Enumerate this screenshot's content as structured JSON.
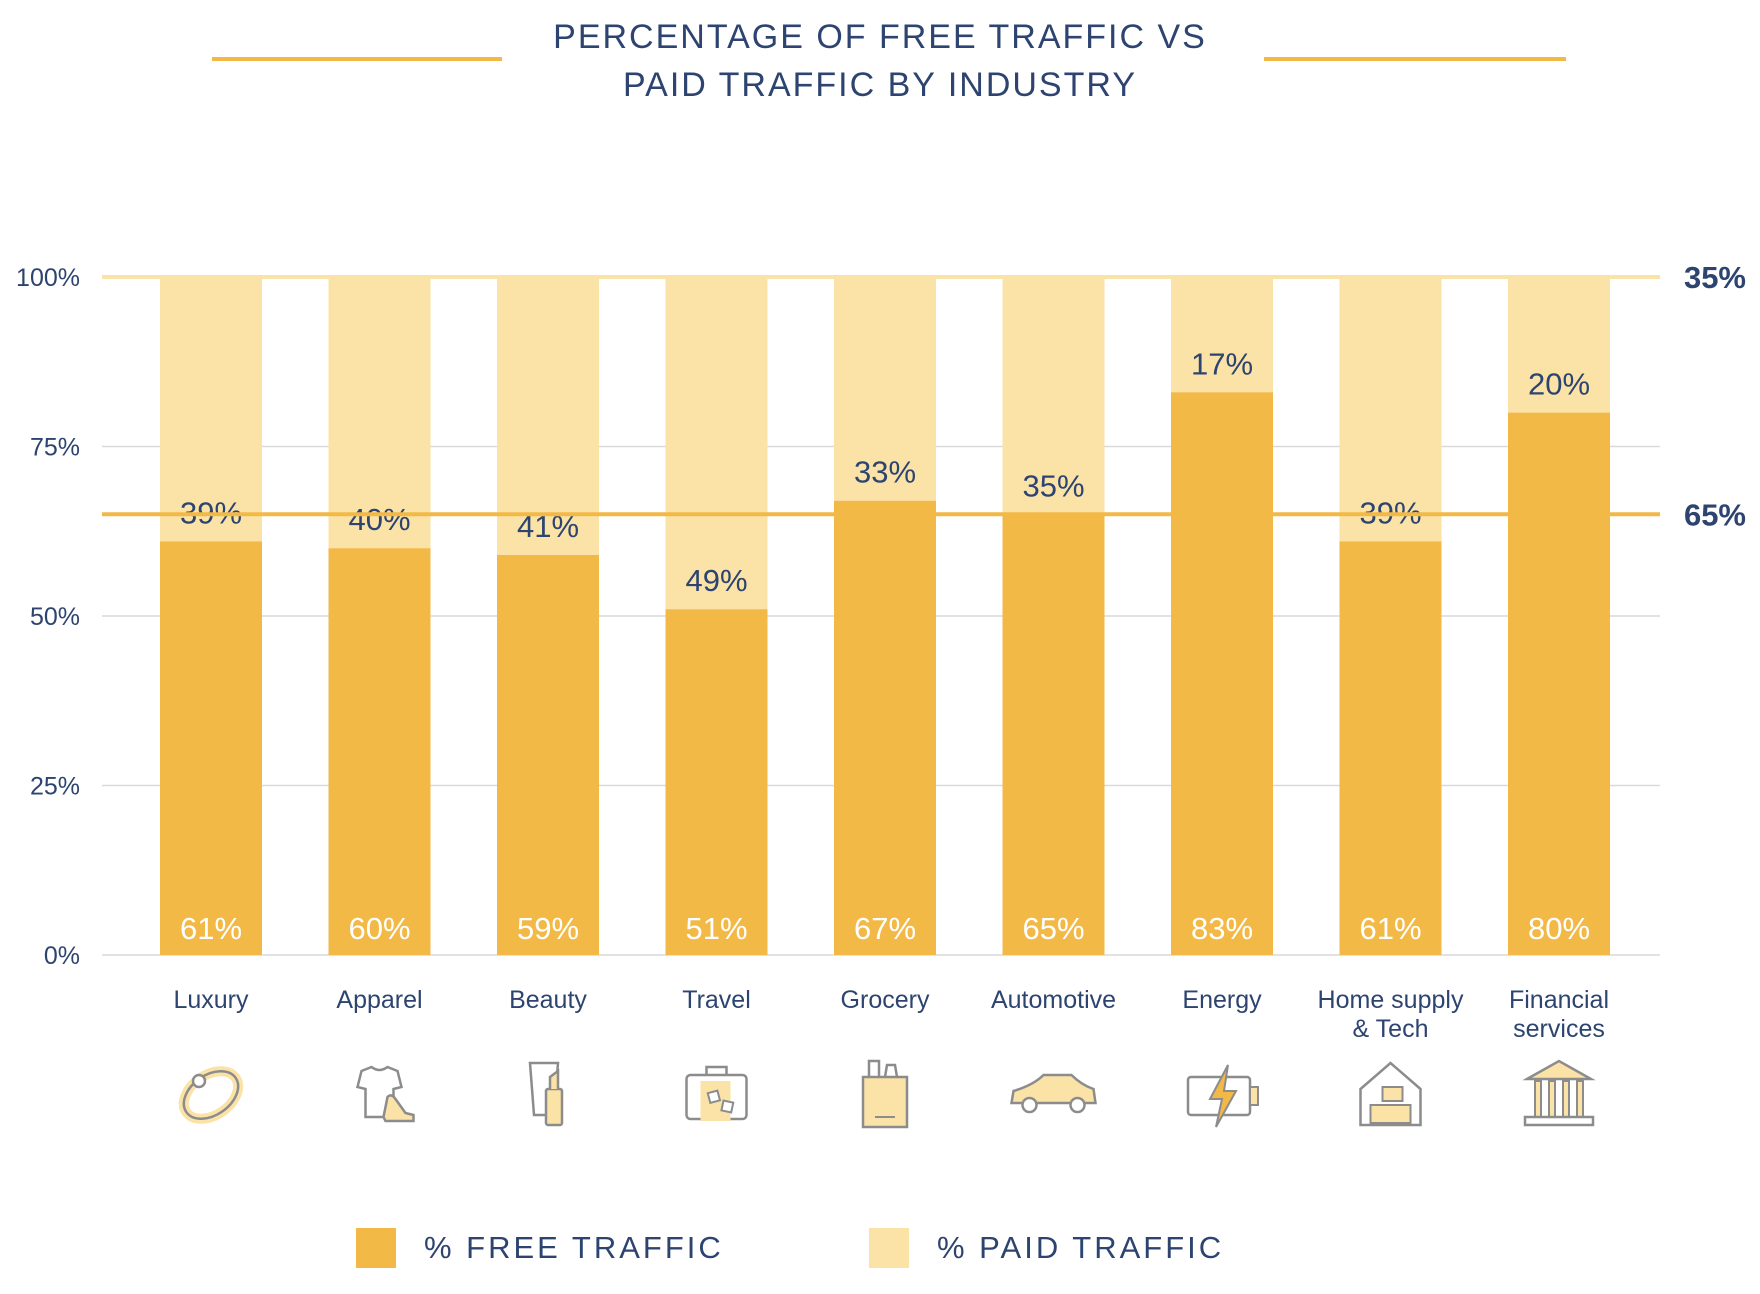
{
  "chart_data": {
    "type": "bar",
    "stacked": true,
    "title_lines": [
      "PERCENTAGE OF FREE TRAFFIC VS",
      "PAID TRAFFIC BY INDUSTRY"
    ],
    "categories": [
      "Luxury",
      "Apparel",
      "Beauty",
      "Travel",
      "Grocery",
      "Automotive",
      "Energy",
      "Home supply & Tech",
      "Financial services"
    ],
    "category_label_lines": [
      [
        "Luxury"
      ],
      [
        "Apparel"
      ],
      [
        "Beauty"
      ],
      [
        "Travel"
      ],
      [
        "Grocery"
      ],
      [
        "Automotive"
      ],
      [
        "Energy"
      ],
      [
        "Home supply",
        "& Tech"
      ],
      [
        "Financial",
        "services"
      ]
    ],
    "icons": [
      "ring-icon",
      "clothing-and-shoe-icon",
      "cosmetics-icon",
      "suitcase-icon",
      "grocery-bag-icon",
      "car-icon",
      "battery-lightning-icon",
      "house-workspace-icon",
      "bank-building-icon"
    ],
    "series": [
      {
        "name": "% FREE TRAFFIC",
        "color": "#f3b947",
        "values": [
          61,
          60,
          59,
          51,
          67,
          65,
          83,
          61,
          80
        ],
        "labels": [
          "61%",
          "60%",
          "59%",
          "51%",
          "67%",
          "65%",
          "83%",
          "61%",
          "80%"
        ]
      },
      {
        "name": "% PAID TRAFFIC",
        "color": "#fbe3a8",
        "values": [
          39,
          40,
          41,
          49,
          33,
          35,
          17,
          39,
          20
        ],
        "labels": [
          "39%",
          "40%",
          "41%",
          "49%",
          "33%",
          "35%",
          "17%",
          "39%",
          "20%"
        ]
      }
    ],
    "y_ticks": [
      0,
      25,
      50,
      75,
      100
    ],
    "y_tick_labels": [
      "0%",
      "25%",
      "50%",
      "75%",
      "100%"
    ],
    "ylim": [
      0,
      100
    ],
    "reference_line": {
      "value": 65,
      "color": "#f3b947"
    },
    "right_annotations": [
      {
        "value": 100,
        "label": "35%"
      },
      {
        "value": 65,
        "label": "65%"
      }
    ],
    "grid": true,
    "legend_position": "bottom",
    "colors": {
      "text": "#2d4470",
      "grid": "#d9d9d9",
      "top_line": "#fbe3a8"
    }
  }
}
